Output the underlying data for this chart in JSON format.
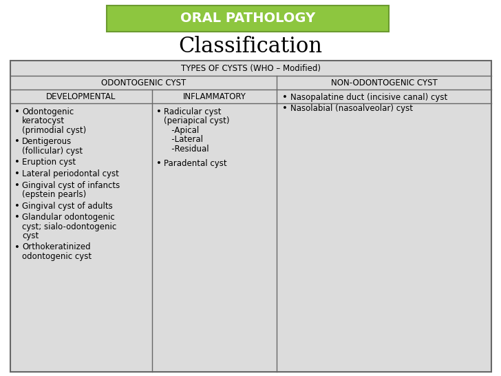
{
  "title_box_text": "ORAL PATHOLOGY",
  "title_box_color": "#8dc63f",
  "title_box_border": "#6b9a2f",
  "subtitle": "Classification",
  "background_color": "#ffffff",
  "table_header1": "TYPES OF CYSTS (WHO – Modified)",
  "table_header2a": "ODONTOGENIC CYST",
  "table_header2b": "NON-ODONTOGENIC CYST",
  "table_header3a": "DEVELOPMENTAL",
  "table_header3b": "INFLAMMATORY",
  "col1_items": [
    [
      "Odontogenic",
      "keratocyst",
      "(primodial cyst)"
    ],
    [
      "Dentigerous",
      "(follicular) cyst"
    ],
    [
      "Eruption cyst"
    ],
    [
      "Lateral periodontal cyst"
    ],
    [
      "Gingival cyst of infancts",
      "(epstein pearls)"
    ],
    [
      "Gingival cyst of adults"
    ],
    [
      "Glandular odontogenic",
      "cyst; sialo-odontogenic",
      "cyst"
    ],
    [
      "Orthokeratinized",
      "odontogenic cyst"
    ]
  ],
  "col2_items": [
    [
      "Radicular cyst",
      "(periapical cyst)",
      "   -Apical",
      "   -Lateral",
      "   -Residual"
    ],
    [
      "Paradental cyst"
    ]
  ],
  "col3_items": [
    [
      "Nasopalatine duct (incisive canal) cyst"
    ],
    [
      "Nasolabial (nasoalveolar) cyst"
    ]
  ],
  "table_bg": "#dcdcdc",
  "border_color": "#666666",
  "text_color": "#000000",
  "font_size": 8.5,
  "header_font_size": 8.5,
  "title_font_size": 14,
  "subtitle_font_size": 22
}
